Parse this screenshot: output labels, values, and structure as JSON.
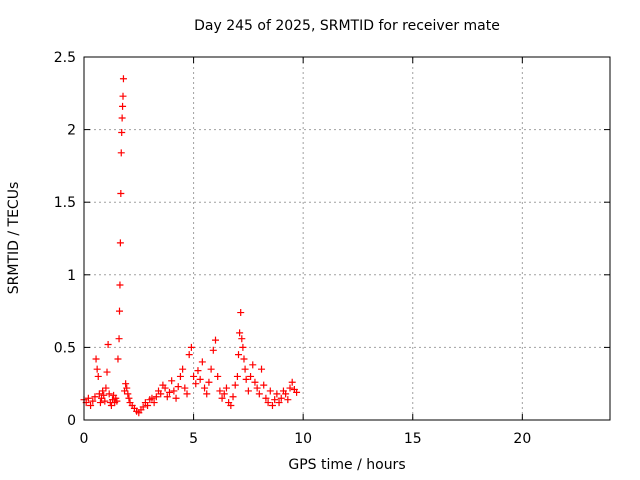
{
  "chart_data": {
    "type": "scatter",
    "title": "Day 245 of 2025, SRMTID for receiver mate",
    "xlabel": "GPS time / hours",
    "ylabel": "SRMTID / TECUs",
    "xlim": [
      0,
      24
    ],
    "ylim": [
      0,
      2.5
    ],
    "xticks": [
      0,
      5,
      10,
      15,
      20
    ],
    "xtick_labels": [
      "0",
      "5",
      "10",
      "15",
      "20"
    ],
    "yticks": [
      0,
      0.5,
      1,
      1.5,
      2,
      2.5
    ],
    "ytick_labels": [
      "0",
      "0.5",
      "1",
      "1.5",
      "2",
      "2.5"
    ],
    "grid": true,
    "marker": "plus",
    "color": "#ff0000",
    "series": [
      {
        "name": "SRMTID",
        "x": [
          0.0,
          0.1,
          0.2,
          0.3,
          0.4,
          0.5,
          0.55,
          0.6,
          0.65,
          0.7,
          0.75,
          0.8,
          0.85,
          0.9,
          0.95,
          1.0,
          1.05,
          1.1,
          1.15,
          1.2,
          1.25,
          1.3,
          1.35,
          1.4,
          1.45,
          1.5,
          1.55,
          1.6,
          1.62,
          1.64,
          1.66,
          1.68,
          1.7,
          1.72,
          1.74,
          1.76,
          1.78,
          1.8,
          1.85,
          1.9,
          1.95,
          2.0,
          2.05,
          2.1,
          2.2,
          2.3,
          2.4,
          2.5,
          2.6,
          2.7,
          2.8,
          2.9,
          3.0,
          3.1,
          3.2,
          3.3,
          3.4,
          3.5,
          3.6,
          3.7,
          3.8,
          3.9,
          4.0,
          4.1,
          4.2,
          4.3,
          4.4,
          4.5,
          4.6,
          4.7,
          4.8,
          4.9,
          5.0,
          5.1,
          5.2,
          5.3,
          5.4,
          5.5,
          5.6,
          5.7,
          5.8,
          5.9,
          6.0,
          6.1,
          6.2,
          6.3,
          6.4,
          6.5,
          6.6,
          6.7,
          6.8,
          6.9,
          7.0,
          7.05,
          7.1,
          7.15,
          7.2,
          7.25,
          7.3,
          7.35,
          7.4,
          7.5,
          7.6,
          7.7,
          7.8,
          7.9,
          8.0,
          8.1,
          8.2,
          8.3,
          8.4,
          8.5,
          8.6,
          8.7,
          8.8,
          8.9,
          9.0,
          9.1,
          9.2,
          9.3,
          9.4,
          9.5,
          9.6,
          9.7
        ],
        "y": [
          0.14,
          0.12,
          0.15,
          0.1,
          0.13,
          0.16,
          0.42,
          0.35,
          0.3,
          0.18,
          0.12,
          0.15,
          0.2,
          0.17,
          0.13,
          0.22,
          0.33,
          0.52,
          0.18,
          0.12,
          0.1,
          0.14,
          0.17,
          0.12,
          0.15,
          0.13,
          0.42,
          0.56,
          0.75,
          0.93,
          1.22,
          1.56,
          1.84,
          1.98,
          2.08,
          2.16,
          2.23,
          2.35,
          0.2,
          0.25,
          0.22,
          0.18,
          0.15,
          0.12,
          0.1,
          0.08,
          0.06,
          0.05,
          0.07,
          0.09,
          0.12,
          0.1,
          0.14,
          0.15,
          0.12,
          0.16,
          0.2,
          0.18,
          0.24,
          0.22,
          0.16,
          0.19,
          0.27,
          0.2,
          0.15,
          0.23,
          0.3,
          0.35,
          0.22,
          0.18,
          0.45,
          0.5,
          0.3,
          0.25,
          0.34,
          0.28,
          0.4,
          0.22,
          0.18,
          0.26,
          0.35,
          0.48,
          0.55,
          0.3,
          0.2,
          0.15,
          0.18,
          0.22,
          0.12,
          0.1,
          0.16,
          0.24,
          0.3,
          0.45,
          0.6,
          0.74,
          0.56,
          0.5,
          0.42,
          0.35,
          0.28,
          0.2,
          0.3,
          0.38,
          0.26,
          0.22,
          0.18,
          0.35,
          0.24,
          0.15,
          0.12,
          0.2,
          0.1,
          0.14,
          0.18,
          0.12,
          0.15,
          0.2,
          0.18,
          0.14,
          0.22,
          0.26,
          0.21,
          0.19
        ]
      }
    ]
  }
}
